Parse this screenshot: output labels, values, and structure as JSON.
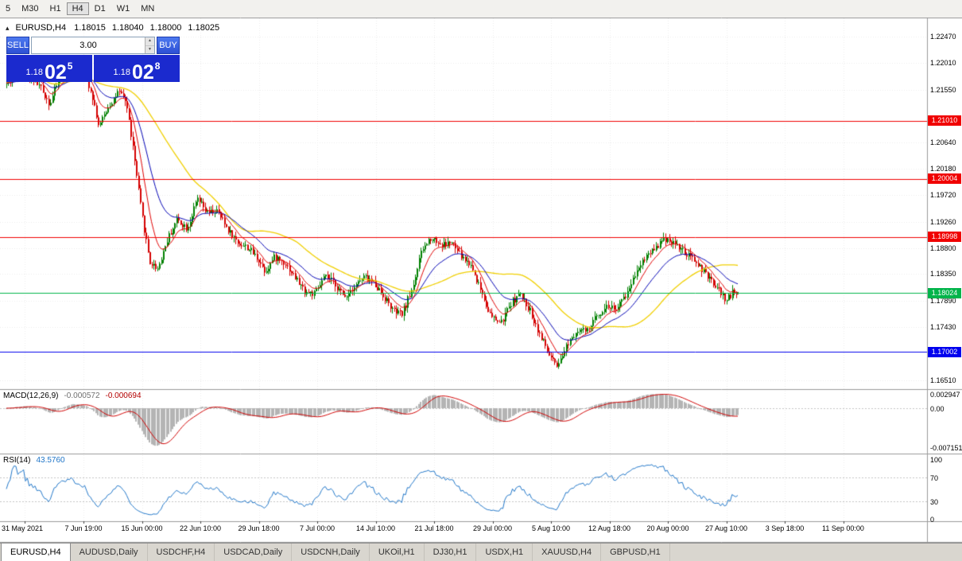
{
  "toolbar": {
    "timeframes": [
      "5",
      "M30",
      "H1",
      "H4",
      "D1",
      "W1",
      "MN"
    ],
    "active": "H4"
  },
  "quote_header": {
    "collapse_icon": "▴",
    "symbol": "EURUSD,H4",
    "open": "1.18015",
    "high": "1.18040",
    "low": "1.18000",
    "close": "1.18025"
  },
  "trade_panel": {
    "sell_label": "SELL",
    "buy_label": "BUY",
    "volume": "3.00",
    "spinner_up_icon": "▲",
    "spinner_down_icon": "▼",
    "sell_price": {
      "prefix": "1.18",
      "big": "02",
      "pip": "5"
    },
    "buy_price": {
      "prefix": "1.18",
      "big": "02",
      "pip": "8"
    }
  },
  "price_axis": {
    "labels": [
      "1.22470",
      "1.22010",
      "1.21550",
      "1.20640",
      "1.20180",
      "1.19720",
      "1.19260",
      "1.18800",
      "1.18350",
      "1.17890",
      "1.17430",
      "1.16510"
    ]
  },
  "levels": [
    {
      "label": "1.21010",
      "value": 1.2101,
      "color": "#f00000"
    },
    {
      "label": "1.20004",
      "value": 1.20004,
      "color": "#f00000"
    },
    {
      "label": "1.18998",
      "value": 1.18998,
      "color": "#f00000"
    },
    {
      "label": "1.18024",
      "value": 1.18024,
      "color": "#00b44a"
    },
    {
      "label": "1.17002",
      "value": 1.17002,
      "color": "#0000ee"
    }
  ],
  "macd_panel": {
    "title": "MACD(12,26,9)",
    "value_main": "-0.000572",
    "value_signal": "-0.000694",
    "axis": [
      "0.002947",
      "0.00",
      "-0.007151"
    ]
  },
  "rsi_panel": {
    "title": "RSI(14)",
    "value": "43.5760",
    "axis": [
      "100",
      "70",
      "30",
      "0"
    ],
    "levels": [
      70,
      30
    ]
  },
  "time_axis": {
    "labels": [
      "31 May 2021",
      "7 Jun 19:00",
      "15 Jun 00:00",
      "22 Jun 10:00",
      "29 Jun 18:00",
      "7 Jul 00:00",
      "14 Jul 10:00",
      "21 Jul 18:00",
      "29 Jul 00:00",
      "5 Aug 10:00",
      "12 Aug 18:00",
      "20 Aug 00:00",
      "27 Aug 10:00",
      "3 Sep 18:00",
      "11 Sep 00:00"
    ]
  },
  "tabs": {
    "items": [
      "EURUSD,H4",
      "AUDUSD,Daily",
      "USDCHF,H4",
      "USDCAD,Daily",
      "USDCNH,Daily",
      "UKOil,H1",
      "DJ30,H1",
      "USDX,H1",
      "XAUUSD,H4",
      "GBPUSD,H1"
    ],
    "active": "EURUSD,H4"
  },
  "colors": {
    "candle_up": "#008000",
    "candle_down": "#d40000",
    "ma_fast_red": "#e00000",
    "ma_mid_blue": "#0000b4",
    "ma_slow_yellow": "#f0cf00",
    "macd_histogram": "#b4b4b4",
    "macd_signal": "#d00000",
    "rsi_line": "#2076c8",
    "grid": "#ececec"
  },
  "chart_data": {
    "type": "candlestick",
    "symbol": "EURUSD",
    "timeframe": "H4",
    "title": "EURUSD,H4",
    "last_candle": {
      "open": 1.18015,
      "high": 1.1804,
      "low": 1.18,
      "close": 1.18025
    },
    "y_range_visible": [
      1.16355,
      1.228
    ],
    "x_labels": [
      "31 May 2021",
      "7 Jun 19:00",
      "15 Jun 00:00",
      "22 Jun 10:00",
      "29 Jun 18:00",
      "7 Jul 00:00",
      "14 Jul 10:00",
      "21 Jul 18:00",
      "29 Jul 00:00",
      "5 Aug 10:00",
      "12 Aug 18:00",
      "20 Aug 00:00",
      "27 Aug 10:00",
      "3 Sep 18:00",
      "11 Sep 00:00"
    ],
    "horizontal_lines": [
      {
        "price": 1.2101,
        "color": "red"
      },
      {
        "price": 1.20004,
        "color": "red"
      },
      {
        "price": 1.18998,
        "color": "red"
      },
      {
        "price": 1.18024,
        "color": "green"
      },
      {
        "price": 1.17002,
        "color": "blue"
      }
    ],
    "moving_averages": [
      {
        "color": "red",
        "approx_period": 10
      },
      {
        "color": "blue",
        "approx_period": 25
      },
      {
        "color": "yellow",
        "approx_period": 55
      }
    ],
    "indicators": [
      {
        "name": "MACD",
        "params": [
          12,
          26,
          9
        ],
        "display_main": -0.000572,
        "display_signal": -0.000694,
        "axis_labels": [
          "0.002947",
          "0.00",
          "-0.007151"
        ]
      },
      {
        "name": "RSI",
        "params": [
          14
        ],
        "display_value": 43.576,
        "axis_labels": [
          "100",
          "70",
          "30",
          "0"
        ],
        "levels": [
          70,
          30
        ]
      }
    ],
    "price_path": [
      [
        8,
        1.2165
      ],
      [
        25,
        1.2185
      ],
      [
        40,
        1.2175
      ],
      [
        50,
        1.216
      ],
      [
        62,
        1.213
      ],
      [
        75,
        1.218
      ],
      [
        90,
        1.2195
      ],
      [
        105,
        1.2185
      ],
      [
        115,
        1.215
      ],
      [
        124,
        1.209
      ],
      [
        135,
        1.2125
      ],
      [
        148,
        1.215
      ],
      [
        158,
        1.2135
      ],
      [
        167,
        1.205
      ],
      [
        177,
        1.1945
      ],
      [
        188,
        1.1855
      ],
      [
        198,
        1.1845
      ],
      [
        210,
        1.1895
      ],
      [
        222,
        1.193
      ],
      [
        235,
        1.1915
      ],
      [
        248,
        1.1965
      ],
      [
        260,
        1.194
      ],
      [
        272,
        1.1945
      ],
      [
        285,
        1.1915
      ],
      [
        298,
        1.189
      ],
      [
        312,
        1.188
      ],
      [
        325,
        1.186
      ],
      [
        333,
        1.184
      ],
      [
        345,
        1.1865
      ],
      [
        358,
        1.1855
      ],
      [
        370,
        1.183
      ],
      [
        383,
        1.1805
      ],
      [
        395,
        1.18
      ],
      [
        408,
        1.183
      ],
      [
        420,
        1.182
      ],
      [
        432,
        1.1795
      ],
      [
        445,
        1.1815
      ],
      [
        458,
        1.183
      ],
      [
        470,
        1.182
      ],
      [
        483,
        1.1795
      ],
      [
        495,
        1.177
      ],
      [
        505,
        1.1765
      ],
      [
        518,
        1.181
      ],
      [
        530,
        1.1875
      ],
      [
        542,
        1.19
      ],
      [
        555,
        1.1885
      ],
      [
        567,
        1.189
      ],
      [
        580,
        1.1865
      ],
      [
        592,
        1.185
      ],
      [
        605,
        1.1805
      ],
      [
        617,
        1.176
      ],
      [
        630,
        1.175
      ],
      [
        642,
        1.1785
      ],
      [
        653,
        1.18
      ],
      [
        665,
        1.1775
      ],
      [
        677,
        1.1735
      ],
      [
        690,
        1.1695
      ],
      [
        701,
        1.167
      ],
      [
        713,
        1.1715
      ],
      [
        726,
        1.174
      ],
      [
        738,
        1.1735
      ],
      [
        751,
        1.1765
      ],
      [
        763,
        1.178
      ],
      [
        776,
        1.1775
      ],
      [
        789,
        1.1805
      ],
      [
        801,
        1.1845
      ],
      [
        814,
        1.187
      ],
      [
        826,
        1.1885
      ],
      [
        838,
        1.1898
      ],
      [
        851,
        1.1885
      ],
      [
        863,
        1.1868
      ],
      [
        876,
        1.1855
      ],
      [
        889,
        1.183
      ],
      [
        901,
        1.1812
      ],
      [
        913,
        1.179
      ],
      [
        921,
        1.1803
      ],
      [
        928,
        1.18025
      ]
    ]
  }
}
